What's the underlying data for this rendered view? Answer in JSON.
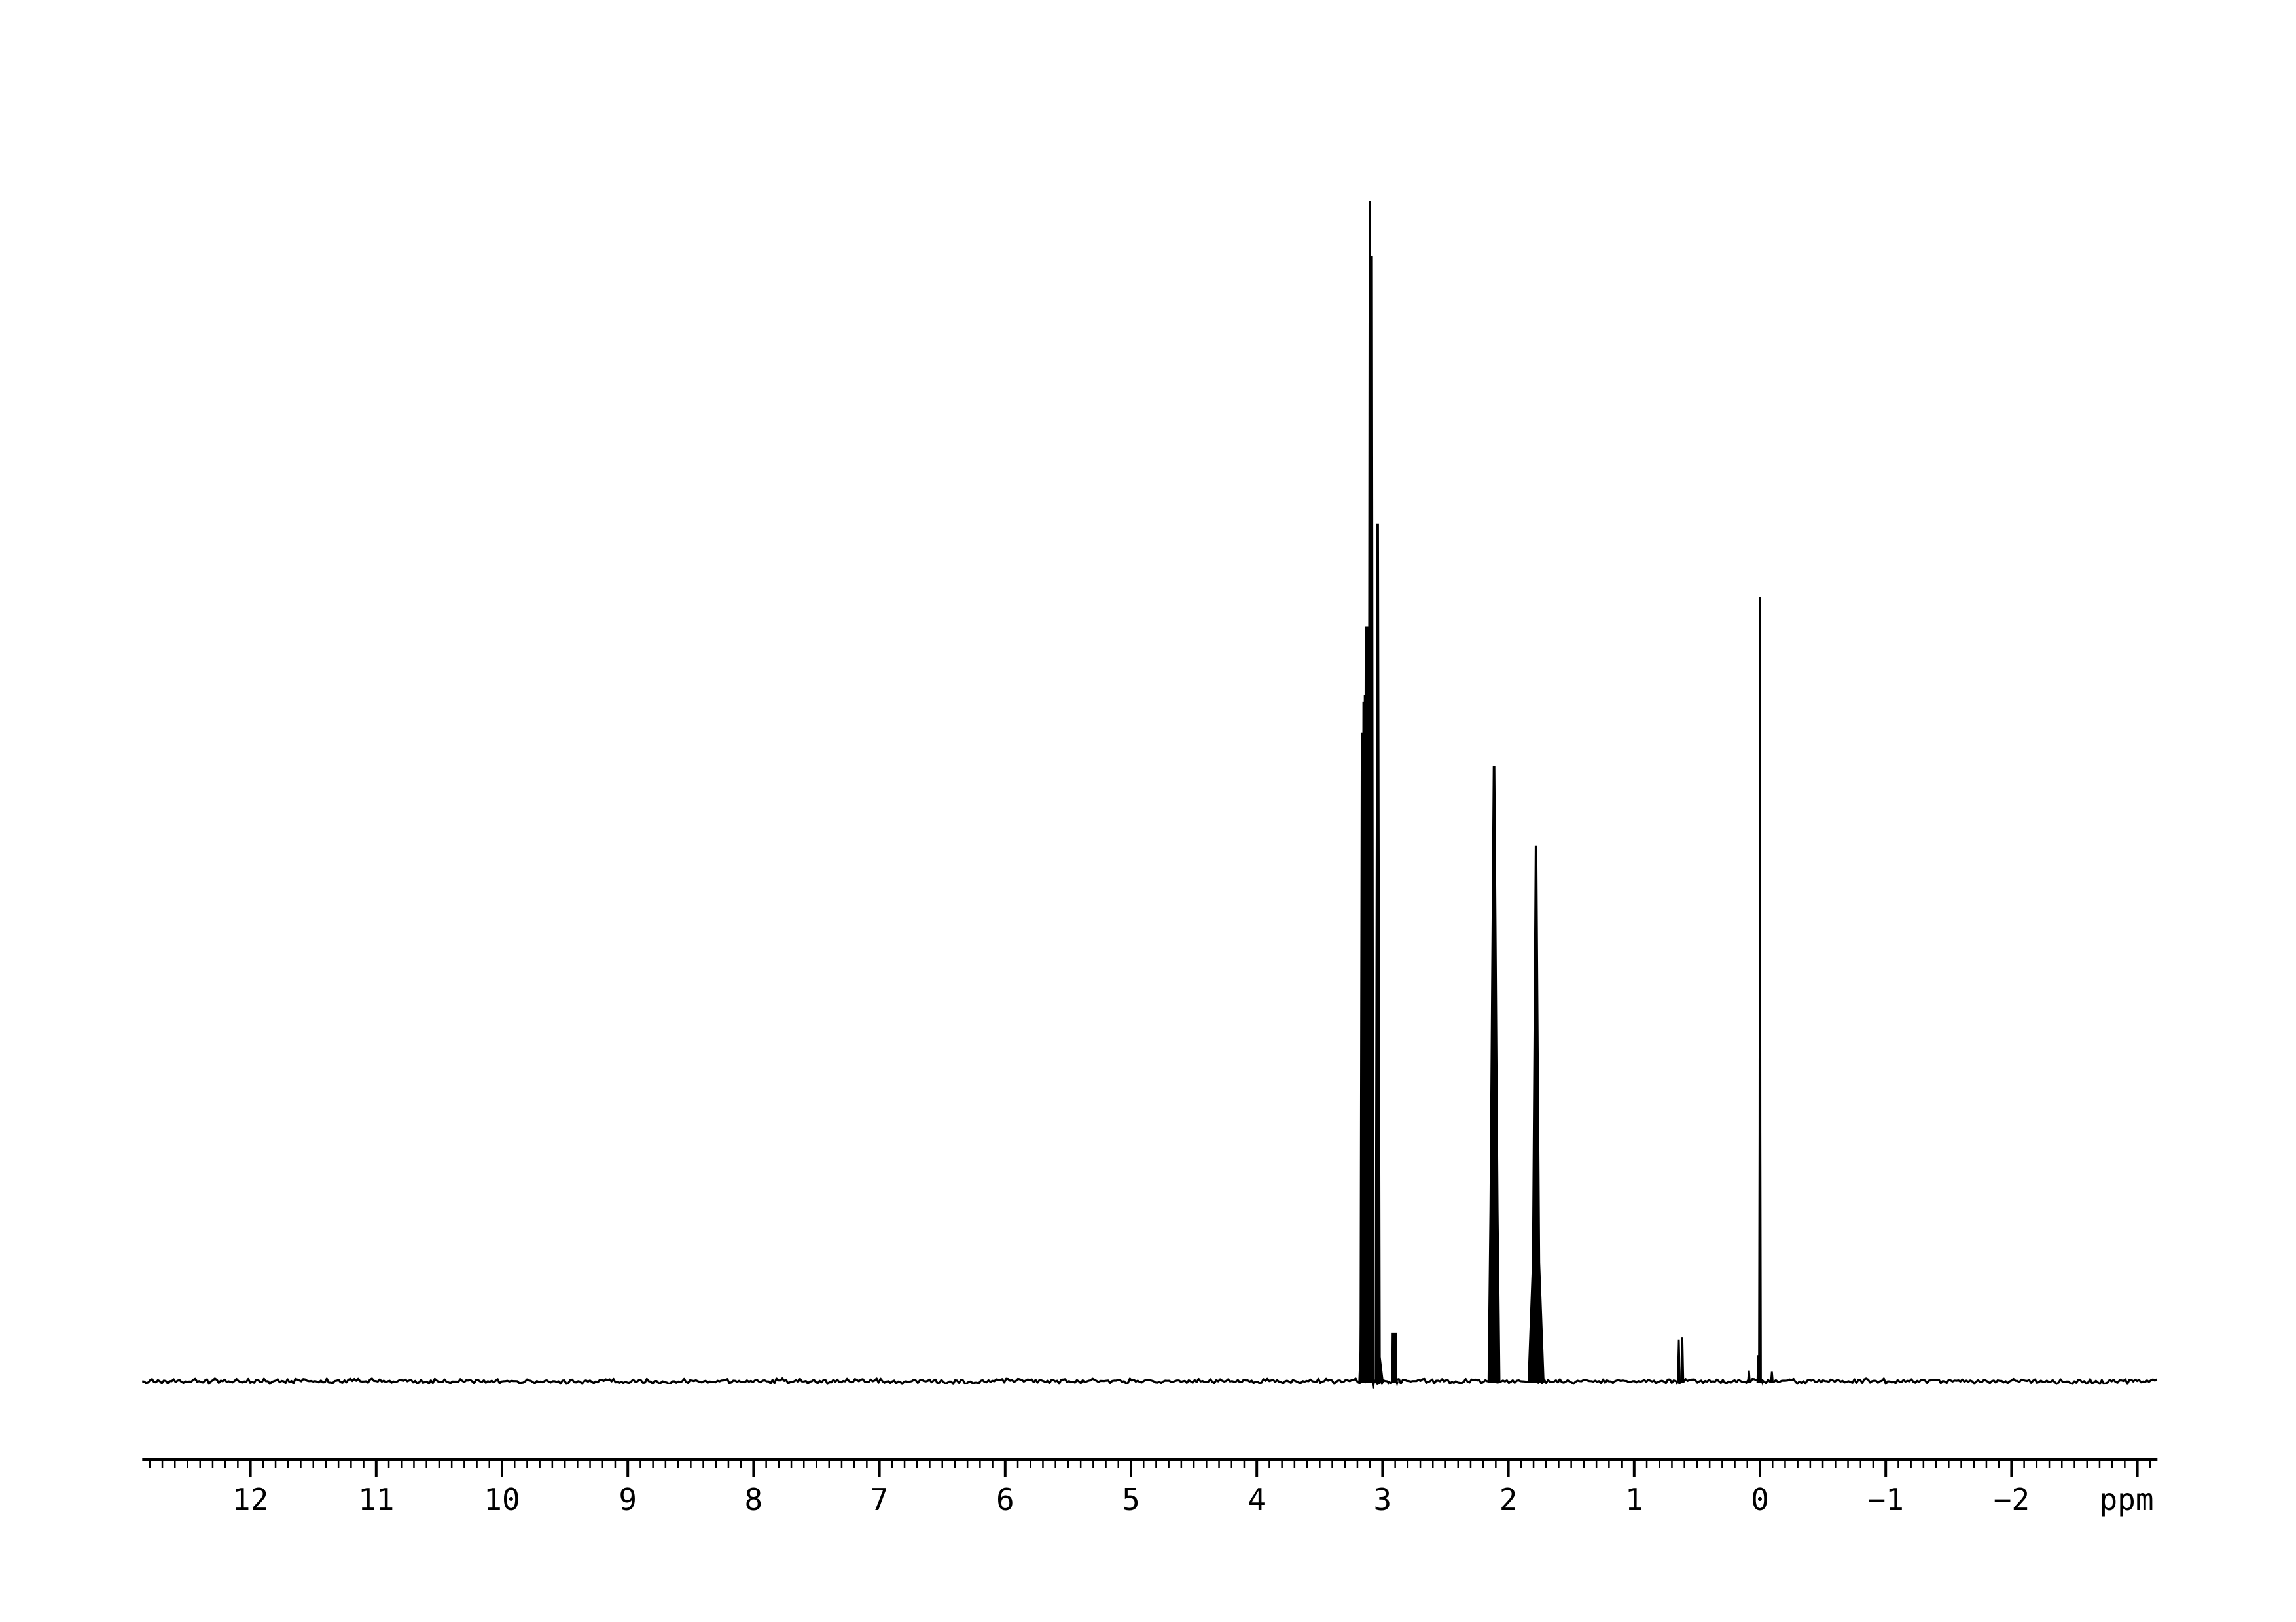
{
  "colors": {
    "background": "#ffffff",
    "trace": "#000000",
    "axis": "#000000"
  },
  "chart_data": {
    "type": "line",
    "title": "",
    "xlabel": "ppm",
    "x_axis": {
      "unit_label": "ppm",
      "direction": "right-to-left",
      "range_ppm": [
        12.86,
        -3.16
      ],
      "major_tick_step_ppm": 1,
      "minor_tick_step_ppm": 0.1,
      "first_minor_tick_ppm": 12.8,
      "last_minor_tick_ppm": -3.1,
      "major_ticks_ppm": [
        12,
        11,
        10,
        9,
        8,
        7,
        6,
        5,
        4,
        3,
        2,
        1,
        0,
        -1,
        -2,
        -3
      ],
      "tick_labels": [
        {
          "ppm": 12,
          "label": "12"
        },
        {
          "ppm": 11,
          "label": "11"
        },
        {
          "ppm": 10,
          "label": "10"
        },
        {
          "ppm": 9,
          "label": "9"
        },
        {
          "ppm": 8,
          "label": "8"
        },
        {
          "ppm": 7,
          "label": "7"
        },
        {
          "ppm": 6,
          "label": "6"
        },
        {
          "ppm": 5,
          "label": "5"
        },
        {
          "ppm": 4,
          "label": "4"
        },
        {
          "ppm": 3,
          "label": "3"
        },
        {
          "ppm": 2,
          "label": "2"
        },
        {
          "ppm": 1,
          "label": "1"
        },
        {
          "ppm": 0,
          "label": "0"
        },
        {
          "ppm": -1,
          "label": "−1"
        },
        {
          "ppm": -2,
          "label": "−2"
        }
      ]
    },
    "y_axis": {
      "visible": false,
      "scale": "relative intensity, tallest peak = 100"
    },
    "baseline": {
      "noise_amplitude_rel": 0.45
    },
    "peaks": [
      {
        "ppm": 3.17,
        "rel_intensity": 9.0,
        "width_ppm": 0.02,
        "top_width_ppm": 0.006
      },
      {
        "ppm": 3.163,
        "rel_intensity": 54.9,
        "width_ppm": 0.03,
        "top_width_ppm": 0.01,
        "skirt": {
          "rel_intensity": 2.5,
          "width_ppm": 0.05,
          "side": "left"
        }
      },
      {
        "ppm": 3.149,
        "rel_intensity": 57.5,
        "width_ppm": 0.03,
        "top_width_ppm": 0.012
      },
      {
        "ppm": 3.138,
        "rel_intensity": 58.1,
        "width_ppm": 0.03,
        "top_width_ppm": 0.012
      },
      {
        "ppm": 3.124,
        "rel_intensity": 63.9,
        "width_ppm": 0.044,
        "top_width_ppm": 0.026
      },
      {
        "ppm": 3.101,
        "rel_intensity": 100.0,
        "width_ppm": 0.03,
        "top_width_ppm": 0.008
      },
      {
        "ppm": 3.086,
        "rel_intensity": 95.3,
        "width_ppm": 0.03,
        "top_width_ppm": 0.008
      },
      {
        "ppm": 3.039,
        "rel_intensity": 72.6,
        "width_ppm": 0.038,
        "top_width_ppm": 0.01,
        "skirt": {
          "rel_intensity": 2.0,
          "width_ppm": 0.085,
          "side": "right"
        }
      },
      {
        "ppm": 2.908,
        "rel_intensity": 4.0,
        "width_ppm": 0.036,
        "top_width_ppm": 0.03,
        "shape": "flat-top"
      },
      {
        "ppm": 2.114,
        "rel_intensity": 52.1,
        "width_ppm": 0.092,
        "top_width_ppm": 0.01,
        "mid": {
          "rel_intensity": 14.5,
          "width_ppm": 0.062
        }
      },
      {
        "ppm": 1.78,
        "rel_intensity": 45.3,
        "width_ppm": 0.125,
        "top_width_ppm": 0.01,
        "mid": {
          "rel_intensity": 10.0,
          "width_ppm": 0.055
        }
      },
      {
        "ppm": 0.645,
        "rel_intensity": 3.4,
        "width_ppm": 0.02,
        "top_width_ppm": 0.005
      },
      {
        "ppm": 0.617,
        "rel_intensity": 3.6,
        "width_ppm": 0.02,
        "top_width_ppm": 0.005
      },
      {
        "ppm": 0.088,
        "rel_intensity": 0.8,
        "width_ppm": 0.018,
        "top_width_ppm": 0.006
      },
      {
        "ppm": 0.016,
        "rel_intensity": 2.1,
        "width_ppm": 0.012,
        "top_width_ppm": 0.004
      },
      {
        "ppm": 0.0,
        "rel_intensity": 66.4,
        "width_ppm": 0.02,
        "top_width_ppm": 0.005,
        "mid": {
          "rel_intensity": 21.0,
          "width_ppm": 0.011
        }
      },
      {
        "ppm": -0.095,
        "rel_intensity": 0.7,
        "width_ppm": 0.018,
        "top_width_ppm": 0.006
      }
    ],
    "baseline_dips": [
      {
        "ppm": 3.072,
        "depth_rel": 0.7,
        "width_ppm": 0.014
      },
      {
        "ppm": 3.005,
        "depth_rel": 0.35,
        "width_ppm": 0.02
      },
      {
        "ppm": 2.955,
        "depth_rel": 0.3,
        "width_ppm": 0.016
      },
      {
        "ppm": 2.885,
        "depth_rel": 0.4,
        "width_ppm": 0.016
      },
      {
        "ppm": 0.66,
        "depth_rel": 0.3,
        "width_ppm": 0.014
      },
      {
        "ppm": -0.02,
        "depth_rel": 0.3,
        "width_ppm": 0.012
      }
    ]
  }
}
